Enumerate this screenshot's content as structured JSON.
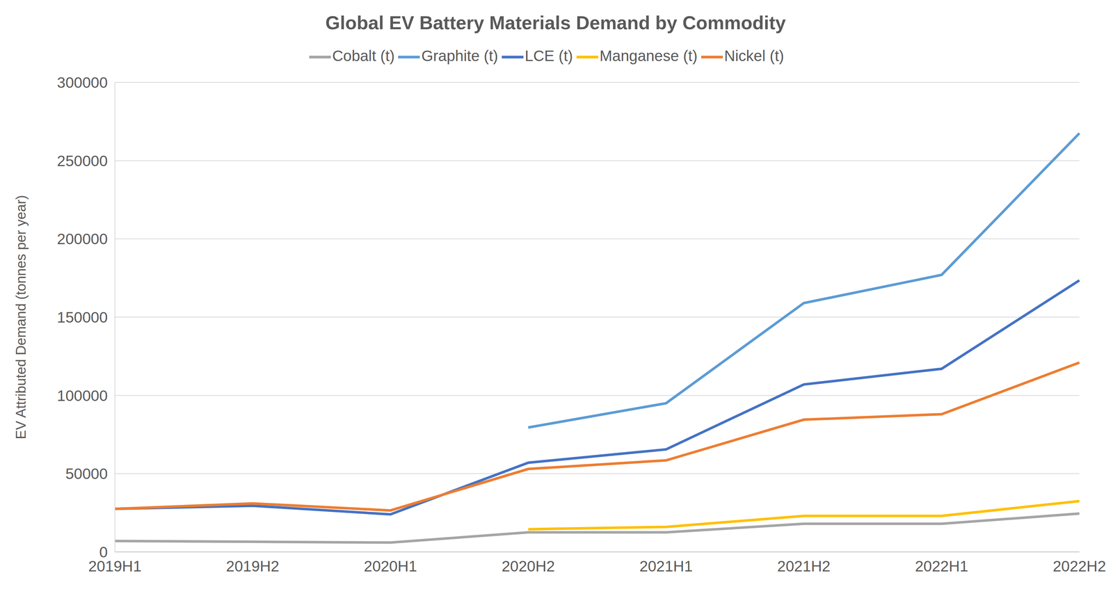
{
  "chart_data": {
    "type": "line",
    "title": "Global EV Battery Materials Demand by Commodity",
    "y_label": "EV Attributed Demand (tonnes per year)",
    "categories": [
      "2019H1",
      "2019H2",
      "2020H1",
      "2020H2",
      "2021H1",
      "2021H2",
      "2022H1",
      "2022H2"
    ],
    "series": [
      {
        "name": "LCE (t)",
        "color": "#4472C4",
        "values": [
          27500,
          29500,
          24000,
          57000,
          65500,
          107000,
          117000,
          173500
        ]
      },
      {
        "name": "Nickel (t)",
        "color": "#ED7D31",
        "values": [
          27500,
          31000,
          26500,
          53000,
          58500,
          84500,
          88000,
          121000
        ]
      },
      {
        "name": "Cobalt (t)",
        "color": "#A5A5A5",
        "values": [
          7000,
          6500,
          6000,
          12500,
          12500,
          18000,
          18000,
          24500
        ]
      },
      {
        "name": "Manganese (t)",
        "color": "#FFC000",
        "values": [
          null,
          null,
          null,
          14500,
          16000,
          23000,
          23000,
          32500
        ]
      },
      {
        "name": "Graphite (t)",
        "color": "#5B9BD5",
        "values": [
          null,
          null,
          null,
          79500,
          95000,
          159000,
          177000,
          267500
        ]
      }
    ],
    "ylim": [
      0,
      300000
    ],
    "yticks": [
      0,
      50000,
      100000,
      150000,
      200000,
      250000,
      300000
    ],
    "grid": true,
    "legend": "top"
  }
}
